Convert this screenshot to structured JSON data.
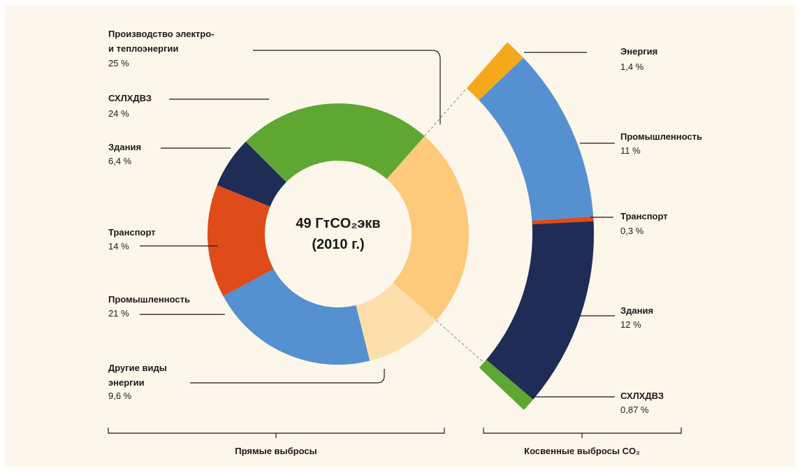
{
  "chart_data": [
    {
      "type": "donut",
      "center_label": "49 ГтCO₂экв\n(2010 г.)",
      "xlabel": "Прямые выбросы",
      "categories": [
        "Производство электро-\nи теплоэнергии",
        "СХЛХДВЗ",
        "Здания",
        "Транспорт",
        "Промышленность",
        "Другие виды\nэнергии"
      ],
      "values": [
        25,
        24,
        6.4,
        14,
        21,
        9.6
      ],
      "value_labels": [
        "25 %",
        "24 %",
        "6,4 %",
        "14 %",
        "21 %",
        "9,6 %"
      ],
      "colors": [
        "#fdca7b",
        "#5ea733",
        "#1f2c56",
        "#e04b1a",
        "#5590d0",
        "#fddfac"
      ]
    },
    {
      "type": "arc",
      "xlabel": "Косвенные выбросы CO₂",
      "categories": [
        "Энергия",
        "Промышленность",
        "Транспорт",
        "Здания",
        "СХЛХДВЗ"
      ],
      "values": [
        1.4,
        11,
        0.3,
        12,
        0.87
      ],
      "value_labels": [
        "1,4 %",
        "11 %",
        "0,3 %",
        "12 %",
        "0,87 %"
      ],
      "colors": [
        "#f5a81c",
        "#5590d0",
        "#e04b1a",
        "#1f2c56",
        "#5ea733"
      ]
    }
  ]
}
